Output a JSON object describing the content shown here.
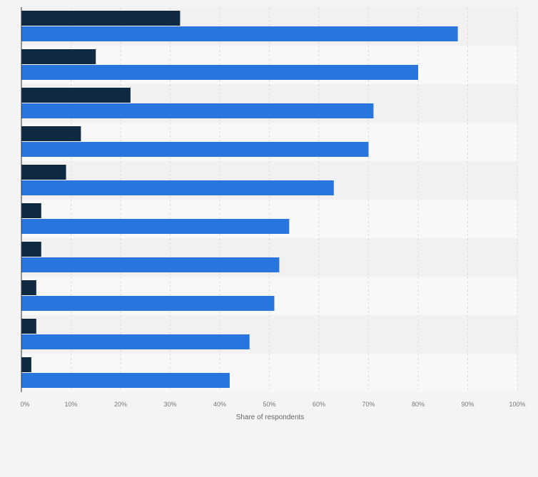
{
  "chart_data": {
    "type": "bar",
    "orientation": "horizontal",
    "categories": [
      "",
      "",
      "",
      "",
      "",
      "",
      "",
      "",
      "",
      ""
    ],
    "series": [
      {
        "values": [
          32,
          15,
          22,
          12,
          9,
          4,
          4,
          3,
          3,
          2
        ]
      },
      {
        "values": [
          88,
          80,
          71,
          70,
          63,
          54,
          52,
          51,
          46,
          42
        ]
      }
    ],
    "xlabel": "Share of respondents",
    "xlim": [
      0,
      100
    ],
    "xticks": [
      "0%",
      "10%",
      "20%",
      "30%",
      "40%",
      "50%",
      "60%",
      "70%",
      "80%",
      "90%",
      "100%"
    ],
    "grid": true,
    "legend": "none",
    "colors": {
      "series_1": "#102a43",
      "series_2": "#2876dd",
      "band_dark": "#f1f1f1",
      "band_light": "#f8f8f8",
      "gridline": "#dddddd",
      "axis": "#333333"
    }
  }
}
